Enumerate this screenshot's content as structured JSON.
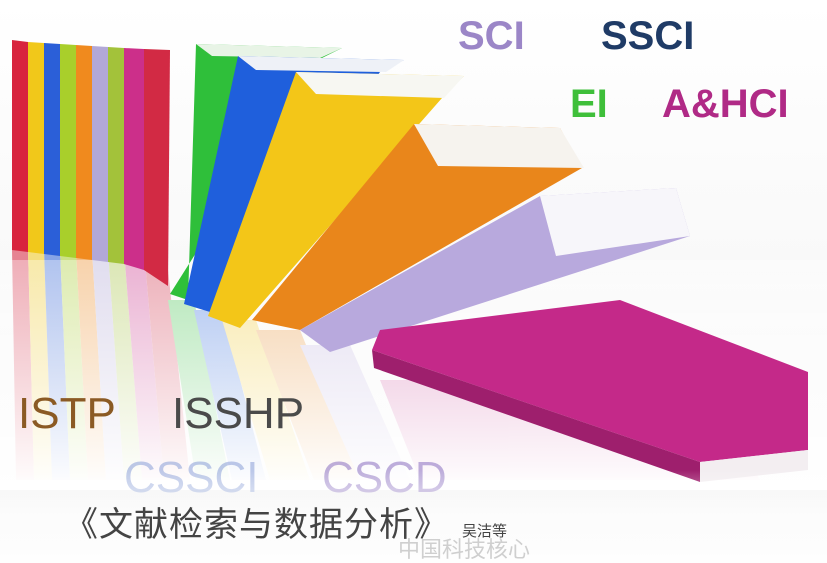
{
  "labels": {
    "sci": {
      "text": "SCI",
      "color": "#9b86c7"
    },
    "ssci": {
      "text": "SSCI",
      "color": "#1f3b66"
    },
    "ei": {
      "text": "EI",
      "color": "#3fbf3a"
    },
    "ahci": {
      "text": "A&HCI",
      "color": "#b02a86"
    },
    "istp": {
      "text": "ISTP",
      "color": "#8b5a24"
    },
    "isshp": {
      "text": "ISSHP",
      "color": "#4a4a4a"
    },
    "cssci": {
      "text": "CSSCI",
      "color": "#8a9fd8"
    },
    "cscd": {
      "text": "CSCD",
      "color": "#8a6fc0"
    }
  },
  "course": {
    "title": "《文献检索与数据分析》",
    "author": "吴洁等"
  },
  "watermark": "中国科技核心",
  "books": [
    {
      "name": "red-book",
      "color": "#d8243e"
    },
    {
      "name": "yellow-book",
      "color": "#f1c81a"
    },
    {
      "name": "blue-book",
      "color": "#2b5fd8"
    },
    {
      "name": "lime-book",
      "color": "#a9cf2b"
    },
    {
      "name": "orange-book",
      "color": "#f08a1e"
    },
    {
      "name": "lavender-book",
      "color": "#b2a8d8"
    },
    {
      "name": "olive-book",
      "color": "#a3c23a"
    },
    {
      "name": "magenta-book",
      "color": "#cc2f8a"
    },
    {
      "name": "crimson-book",
      "color": "#d22a44"
    },
    {
      "name": "green-book",
      "color": "#2fbf3a"
    },
    {
      "name": "blue-leaning-book",
      "color": "#1f5fdc"
    },
    {
      "name": "yellow-leaning-book",
      "color": "#f3c618"
    },
    {
      "name": "orange-leaning-book",
      "color": "#e9861b"
    },
    {
      "name": "lilac-leaning-book",
      "color": "#b8a9dd"
    },
    {
      "name": "magenta-fallen-book",
      "color": "#c42989"
    }
  ]
}
